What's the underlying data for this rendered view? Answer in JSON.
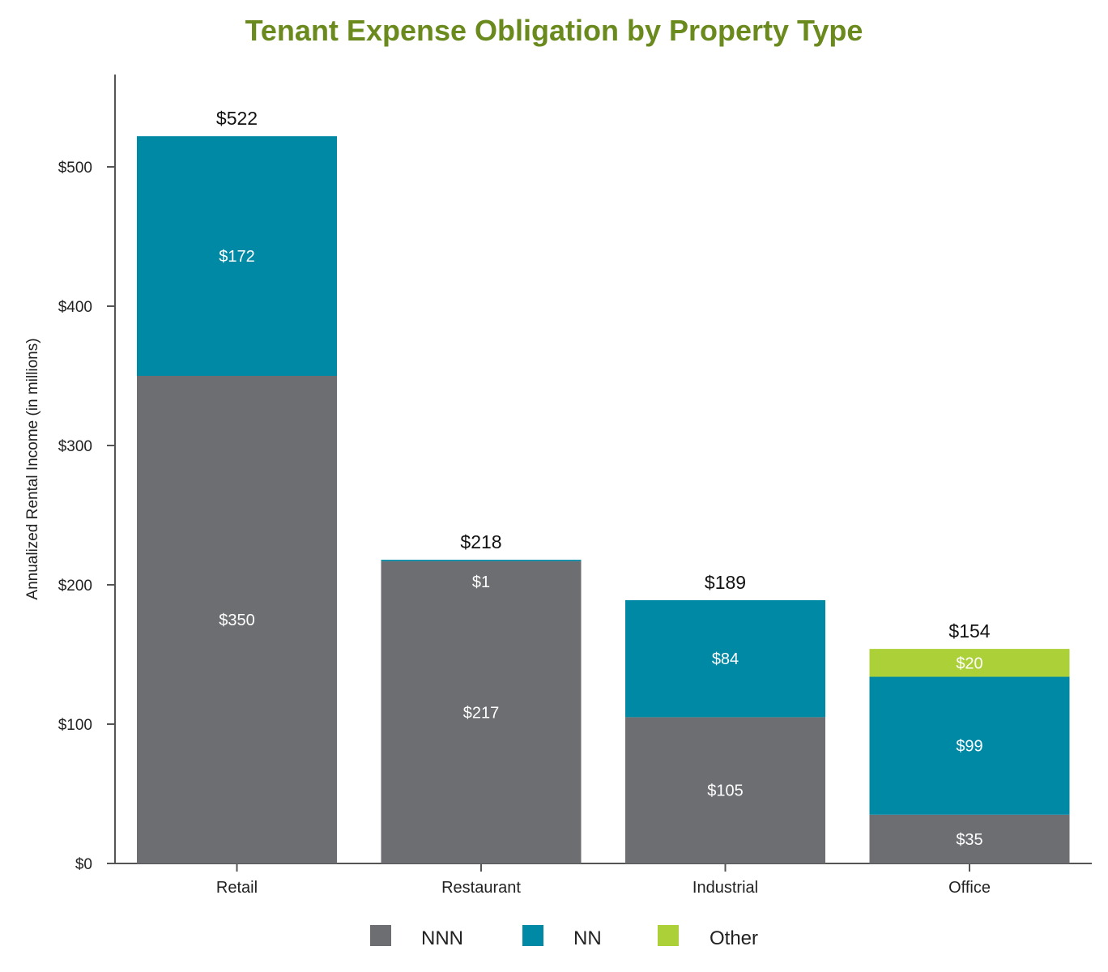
{
  "chart_data": {
    "type": "bar",
    "stacked": true,
    "title": "Tenant Expense Obligation by Property Type",
    "xlabel": "",
    "ylabel": "Annualized Rental Income (in millions)",
    "ylim": [
      0,
      560
    ],
    "yticks": [
      0,
      100,
      200,
      300,
      400,
      500
    ],
    "ytick_labels": [
      "$0",
      "$100",
      "$200",
      "$300",
      "$400",
      "$500"
    ],
    "categories": [
      "Retail",
      "Restaurant",
      "Industrial",
      "Office"
    ],
    "series": [
      {
        "name": "NNN",
        "color": "#6d6e71",
        "values": [
          350,
          217,
          105,
          35
        ],
        "labels": [
          "$350",
          "$217",
          "$105",
          "$35"
        ]
      },
      {
        "name": "NN",
        "color": "#0089a5",
        "values": [
          172,
          1,
          84,
          99
        ],
        "labels": [
          "$172",
          "$1",
          "$84",
          "$99"
        ]
      },
      {
        "name": "Other",
        "color": "#acd038",
        "values": [
          0,
          0,
          0,
          20
        ],
        "labels": [
          "",
          "",
          "",
          "$20"
        ]
      }
    ],
    "totals": [
      522,
      218,
      189,
      154
    ],
    "total_labels": [
      "$522",
      "$218",
      "$189",
      "$154"
    ],
    "legend_position": "bottom-center",
    "grid": false,
    "title_color": "#6a8a1e"
  }
}
